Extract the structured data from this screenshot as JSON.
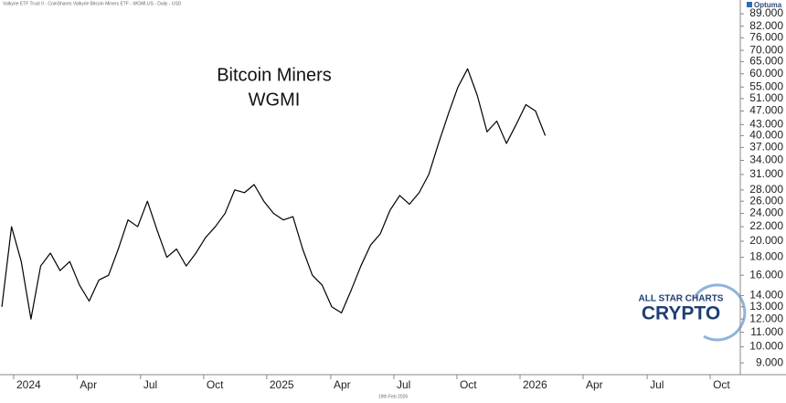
{
  "chart_data": {
    "type": "line",
    "subtitle": "Valkyrie ETF Trust II - CoinShares Valkyrie Bitcoin Miners ETF - WGMI.US - Daily - USD",
    "annotation": [
      "Bitcoin Miners",
      "WGMI"
    ],
    "footnote": "19th Feb 2026",
    "branding": {
      "source": "Optuma",
      "logo_top": "ALL STAR CHARTS",
      "logo_bottom": "CRYPTO"
    },
    "log_scale": true,
    "grid": false,
    "y_axis_side": "right",
    "color": "#000000",
    "values": [
      13,
      22,
      17.5,
      12,
      17,
      18.5,
      16.5,
      17.5,
      15,
      13.5,
      15.5,
      16,
      19,
      23,
      22,
      26,
      21.5,
      18,
      19,
      17,
      18.5,
      20.5,
      22,
      24,
      28,
      27.5,
      29,
      26,
      24,
      23,
      23.5,
      19,
      16,
      15,
      13,
      12.5,
      14.5,
      17,
      19.5,
      21,
      24.5,
      27,
      25.5,
      27.5,
      31,
      38,
      46,
      55,
      62,
      52,
      41,
      44,
      38,
      43,
      49,
      47,
      40
    ],
    "xlim": [
      -0.19,
      76.1
    ],
    "xticks": [
      {
        "value": 1.22,
        "label": "2024"
      },
      {
        "value": 7.76,
        "label": "Apr"
      },
      {
        "value": 14.3,
        "label": "Jul"
      },
      {
        "value": 20.8,
        "label": "Oct"
      },
      {
        "value": 27.3,
        "label": "2025"
      },
      {
        "value": 33.9,
        "label": "Apr"
      },
      {
        "value": 40.4,
        "label": "Jul"
      },
      {
        "value": 46.9,
        "label": "Oct"
      },
      {
        "value": 53.4,
        "label": "2026"
      },
      {
        "value": 59.9,
        "label": "Apr"
      },
      {
        "value": 66.5,
        "label": "Jul"
      },
      {
        "value": 73,
        "label": "Oct"
      }
    ],
    "ylim": [
      8.33,
      97.4
    ],
    "yticks": [
      {
        "value": 9,
        "label": "9.000"
      },
      {
        "value": 10,
        "label": "10.000"
      },
      {
        "value": 11,
        "label": "11.000"
      },
      {
        "value": 12,
        "label": "12.000"
      },
      {
        "value": 13,
        "label": "13.000"
      },
      {
        "value": 14,
        "label": "14.000"
      },
      {
        "value": 16,
        "label": "16.000"
      },
      {
        "value": 18,
        "label": "18.000"
      },
      {
        "value": 20,
        "label": "20.000"
      },
      {
        "value": 22,
        "label": "22.000"
      },
      {
        "value": 24,
        "label": "24.000"
      },
      {
        "value": 26,
        "label": "26.000"
      },
      {
        "value": 28,
        "label": "28.000"
      },
      {
        "value": 31,
        "label": "31.000"
      },
      {
        "value": 34,
        "label": "34.000"
      },
      {
        "value": 37,
        "label": "37.000"
      },
      {
        "value": 40,
        "label": "40.000"
      },
      {
        "value": 43,
        "label": "43.000"
      },
      {
        "value": 47,
        "label": "47.000"
      },
      {
        "value": 51,
        "label": "51.000"
      },
      {
        "value": 55,
        "label": "55.000"
      },
      {
        "value": 60,
        "label": "60.000"
      },
      {
        "value": 65,
        "label": "65.000"
      },
      {
        "value": 70,
        "label": "70.000"
      },
      {
        "value": 76,
        "label": "76.000"
      },
      {
        "value": 82,
        "label": "82.000"
      },
      {
        "value": 89,
        "label": "89.000"
      }
    ]
  }
}
